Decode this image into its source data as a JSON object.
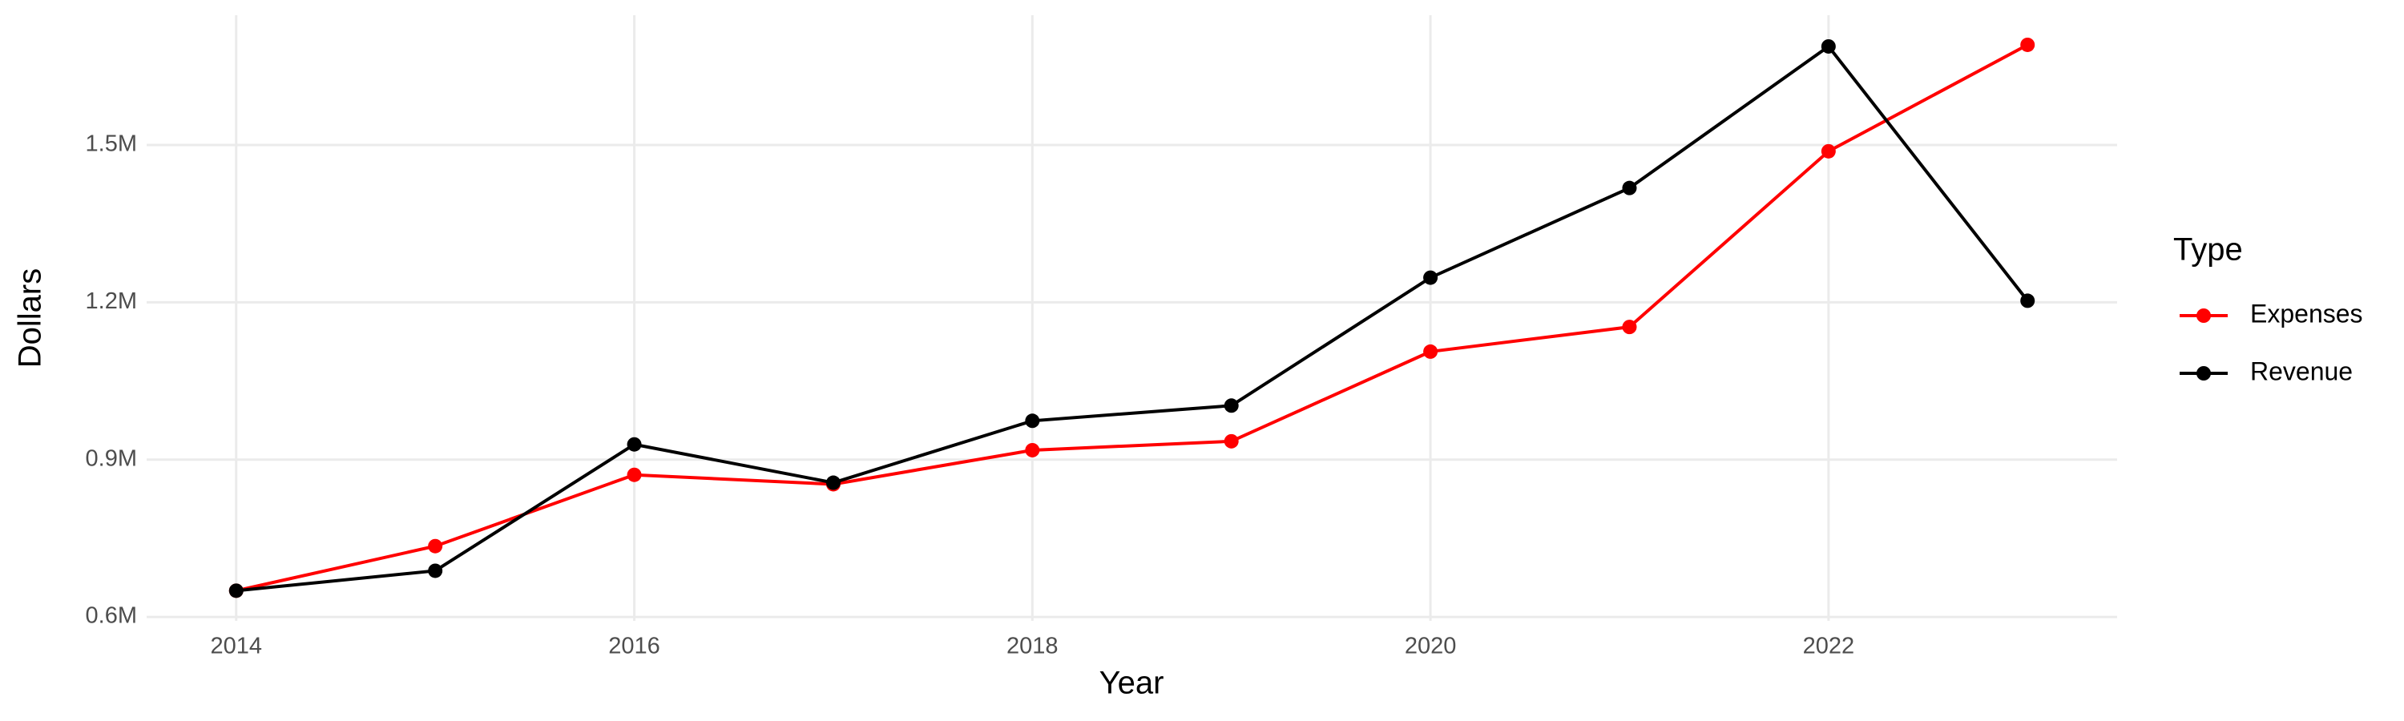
{
  "chart_data": {
    "type": "line",
    "x_label": "Year",
    "y_label": "Dollars",
    "legend_title": "Type",
    "x": [
      2014,
      2015,
      2016,
      2017,
      2018,
      2019,
      2020,
      2021,
      2022,
      2023
    ],
    "series": [
      {
        "name": "Expenses",
        "color": "#ff0000",
        "values": [
          650000,
          735000,
          871000,
          853000,
          918000,
          935000,
          1106000,
          1153000,
          1488000,
          1691000
        ]
      },
      {
        "name": "Revenue",
        "color": "#000000",
        "values": [
          650000,
          688000,
          929000,
          856000,
          974000,
          1003000,
          1247000,
          1418000,
          1688000,
          1203000
        ]
      }
    ],
    "xlim": [
      2013.55,
      2023.45
    ],
    "xticks": [
      2014,
      2016,
      2018,
      2020,
      2022
    ],
    "ylim": [
      592500,
      1747500
    ],
    "yticks": [
      {
        "value": 600000,
        "label": "0.6M"
      },
      {
        "value": 900000,
        "label": "0.9M"
      },
      {
        "value": 1200000,
        "label": "1.2M"
      },
      {
        "value": 1500000,
        "label": "1.5M"
      }
    ],
    "grid": true,
    "legend_position": "right"
  }
}
